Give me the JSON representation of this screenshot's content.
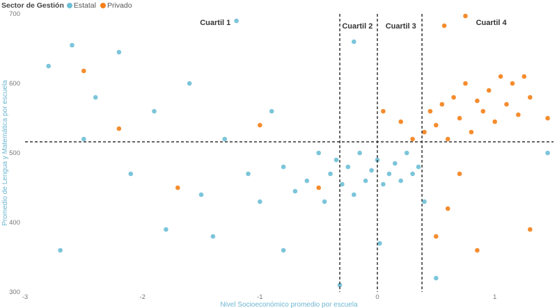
{
  "legend": {
    "title": "Sector de Gestión",
    "items": [
      {
        "label": "Estatal",
        "color": "#6dbfd6"
      },
      {
        "label": "Privado",
        "color": "#f47f17"
      }
    ]
  },
  "chart_data": {
    "type": "scatter",
    "title": "",
    "xlabel": "Nivel Socioeconómico promedio por escuela",
    "ylabel": "Promedio de Lengua y Matemática por escuela",
    "xlim": [
      -3,
      1.5
    ],
    "ylim": [
      300,
      700
    ],
    "x_ticks": [
      -3,
      -2,
      -1,
      0,
      1
    ],
    "y_ticks": [
      300,
      400,
      500,
      600,
      700
    ],
    "grid": false,
    "legend_position": "top-left",
    "reference_lines": {
      "horizontal": [
        516
      ],
      "vertical": [
        -0.32,
        0.0,
        0.38
      ]
    },
    "annotations": [
      {
        "text": "Cuartil 1",
        "x": -1.38,
        "y": 688
      },
      {
        "text": "Cuartil 2",
        "x": -0.17,
        "y": 683
      },
      {
        "text": "Cuartil 3",
        "x": 0.2,
        "y": 683
      },
      {
        "text": "Cuartil 4",
        "x": 0.97,
        "y": 688
      }
    ],
    "series": [
      {
        "name": "Estatal",
        "color": "#6dbfd6",
        "points": [
          [
            -2.8,
            625
          ],
          [
            -2.6,
            655
          ],
          [
            -2.5,
            520
          ],
          [
            -2.4,
            580
          ],
          [
            -2.2,
            645
          ],
          [
            -2.1,
            470
          ],
          [
            -1.9,
            560
          ],
          [
            -1.8,
            390
          ],
          [
            -1.6,
            600
          ],
          [
            -1.5,
            440
          ],
          [
            -1.3,
            520
          ],
          [
            -1.2,
            690
          ],
          [
            -1.1,
            470
          ],
          [
            -1.0,
            430
          ],
          [
            -0.9,
            560
          ],
          [
            -0.8,
            480
          ],
          [
            -0.7,
            445
          ],
          [
            -0.6,
            460
          ],
          [
            -0.5,
            500
          ],
          [
            -0.45,
            430
          ],
          [
            -0.4,
            470
          ],
          [
            -0.35,
            490
          ],
          [
            -0.3,
            455
          ],
          [
            -0.25,
            480
          ],
          [
            -0.2,
            440
          ],
          [
            -0.15,
            500
          ],
          [
            -0.1,
            460
          ],
          [
            -0.05,
            475
          ],
          [
            0.0,
            490
          ],
          [
            0.05,
            455
          ],
          [
            0.1,
            470
          ],
          [
            0.15,
            485
          ],
          [
            0.2,
            460
          ],
          [
            0.25,
            500
          ],
          [
            0.3,
            470
          ],
          [
            0.35,
            480
          ],
          [
            0.4,
            430
          ],
          [
            0.5,
            320
          ],
          [
            -0.32,
            310
          ],
          [
            -0.2,
            660
          ],
          [
            1.45,
            500
          ],
          [
            -2.7,
            360
          ],
          [
            -1.4,
            380
          ],
          [
            -0.8,
            360
          ],
          [
            0.02,
            370
          ]
        ]
      },
      {
        "name": "Privado",
        "color": "#f47f17",
        "points": [
          [
            -2.5,
            618
          ],
          [
            -2.2,
            535
          ],
          [
            -1.7,
            450
          ],
          [
            -1.0,
            540
          ],
          [
            -0.5,
            450
          ],
          [
            0.05,
            560
          ],
          [
            0.2,
            545
          ],
          [
            0.3,
            520
          ],
          [
            0.4,
            530
          ],
          [
            0.45,
            560
          ],
          [
            0.5,
            540
          ],
          [
            0.55,
            570
          ],
          [
            0.6,
            520
          ],
          [
            0.65,
            580
          ],
          [
            0.7,
            550
          ],
          [
            0.75,
            600
          ],
          [
            0.8,
            530
          ],
          [
            0.85,
            575
          ],
          [
            0.9,
            560
          ],
          [
            0.95,
            590
          ],
          [
            1.0,
            545
          ],
          [
            1.05,
            610
          ],
          [
            1.1,
            570
          ],
          [
            1.15,
            600
          ],
          [
            1.2,
            555
          ],
          [
            1.25,
            610
          ],
          [
            1.3,
            580
          ],
          [
            0.75,
            697
          ],
          [
            0.57,
            683
          ],
          [
            0.6,
            420
          ],
          [
            0.5,
            380
          ],
          [
            0.85,
            360
          ],
          [
            1.3,
            390
          ],
          [
            1.45,
            550
          ],
          [
            0.7,
            470
          ]
        ]
      }
    ]
  }
}
